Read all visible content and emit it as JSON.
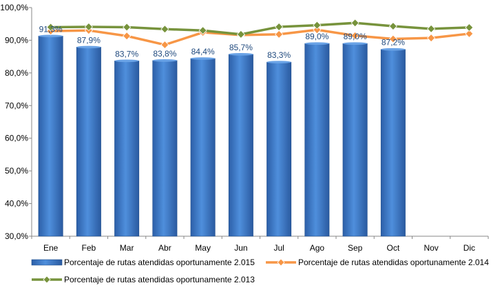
{
  "chart_data": {
    "type": "bar",
    "categories": [
      "Ene",
      "Feb",
      "Mar",
      "Abr",
      "May",
      "Jun",
      "Jul",
      "Ago",
      "Sep",
      "Oct",
      "Nov",
      "Dic"
    ],
    "ylim": [
      30,
      100
    ],
    "yticks": [
      30,
      40,
      50,
      60,
      70,
      80,
      90,
      100
    ],
    "ytick_labels": [
      "30,0%",
      "40,0%",
      "50,0%",
      "60,0%",
      "70,0%",
      "80,0%",
      "90,0%",
      "100,0%"
    ],
    "grid": false,
    "legend_position": "bottom",
    "series": [
      {
        "name": "Porcentaje de rutas atendidas oportunamente 2.015",
        "kind": "bar",
        "color": "#3a78c9",
        "values": [
          91.3,
          87.9,
          83.7,
          83.8,
          84.4,
          85.7,
          83.3,
          89.0,
          89.0,
          87.2,
          null,
          null
        ],
        "labels": [
          "91,3%",
          "87,9%",
          "83,7%",
          "83,8%",
          "84,4%",
          "85,7%",
          "83,3%",
          "89,0%",
          "89,0%",
          "87,2%",
          "",
          ""
        ]
      },
      {
        "name": "Porcentaje de rutas atendidas oportunamente 2.014",
        "kind": "line",
        "color": "#f79646",
        "values": [
          92.8,
          93.0,
          91.3,
          88.6,
          92.4,
          91.6,
          91.8,
          93.2,
          91.4,
          90.4,
          90.7,
          92.0
        ]
      },
      {
        "name": "Porcentaje de rutas atendidas oportunamente 2.013",
        "kind": "line",
        "color": "#77933c",
        "values": [
          94.0,
          94.1,
          94.0,
          93.4,
          93.0,
          91.8,
          94.1,
          94.6,
          95.3,
          94.3,
          93.5,
          93.9
        ]
      }
    ]
  }
}
